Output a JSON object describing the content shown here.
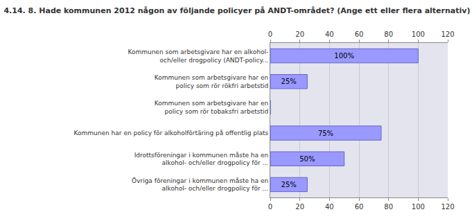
{
  "chart_data": {
    "type": "bar",
    "title": "4.14. 8. Hade kommunen 2012 någon av följande policyer på ANDT-området? (Ange ett eller flera alternativ)",
    "orientation": "horizontal",
    "categories": [
      "Kommunen som arbetsgivare har en alkohol-\noch/eller drogpolicy (ANDT-policy...",
      "Kommunen som arbetsgivare har en\npolicy som rör rökfri arbetstid",
      "Kommunen som arbetsgivare har en\npolicy som rör tobaksfri arbetstid",
      "Kommunen har en policy för alkoholförtäring på offentlig plats",
      "Idrottsföreningar i kommunen måste ha en\nalkohol- och/eller drogpolicy för ...",
      "Övriga föreningar i kommunen måste ha en\nalkohol- och/eller drogpolicy för ..."
    ],
    "values": [
      100,
      25,
      0,
      75,
      50,
      25
    ],
    "value_labels": [
      "100%",
      "25%",
      null,
      "75%",
      "50%",
      "25%"
    ],
    "data_labels": true,
    "color": "#9999ff",
    "xlim": [
      0,
      120
    ],
    "xticks": [
      0,
      20,
      40,
      60,
      80,
      100,
      120
    ],
    "grid": true
  }
}
